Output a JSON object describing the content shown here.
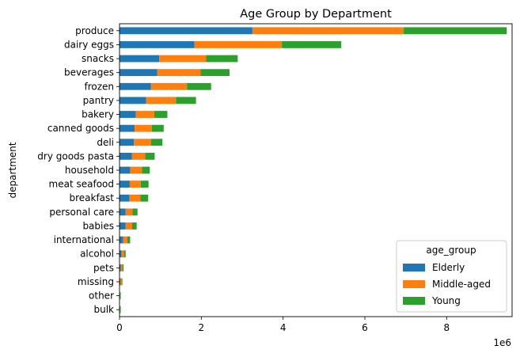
{
  "chart_data": {
    "type": "bar",
    "orientation": "horizontal",
    "stacked": true,
    "title": "Age Group by Department",
    "xlabel": "",
    "ylabel": "department",
    "x_scale_label": "1e6",
    "xlim": [
      0,
      9.6
    ],
    "x_ticks": [
      "0",
      "2",
      "4",
      "6",
      "8"
    ],
    "grid": false,
    "legend": {
      "title": "age_group",
      "placement": "bottom-right"
    },
    "categories": [
      "produce",
      "dairy eggs",
      "snacks",
      "beverages",
      "frozen",
      "pantry",
      "bakery",
      "canned goods",
      "deli",
      "dry goods pasta",
      "household",
      "meat seafood",
      "breakfast",
      "personal care",
      "babies",
      "international",
      "alcohol",
      "pets",
      "missing",
      "other",
      "bulk"
    ],
    "series": [
      {
        "name": "Elderly",
        "color": "#1f77b4",
        "values": [
          3.25,
          1.83,
          0.97,
          0.92,
          0.77,
          0.65,
          0.4,
          0.37,
          0.35,
          0.3,
          0.26,
          0.25,
          0.24,
          0.15,
          0.15,
          0.09,
          0.05,
          0.03,
          0.02,
          0.01,
          0.01
        ]
      },
      {
        "name": "Middle-aged",
        "color": "#ff7f0e",
        "values": [
          3.7,
          2.14,
          1.15,
          1.06,
          0.88,
          0.73,
          0.45,
          0.42,
          0.42,
          0.33,
          0.29,
          0.27,
          0.27,
          0.17,
          0.16,
          0.1,
          0.06,
          0.04,
          0.03,
          0.01,
          0.01
        ]
      },
      {
        "name": "Young",
        "color": "#2ca02c",
        "values": [
          2.52,
          1.45,
          0.77,
          0.71,
          0.59,
          0.49,
          0.32,
          0.29,
          0.28,
          0.23,
          0.19,
          0.19,
          0.19,
          0.12,
          0.11,
          0.07,
          0.04,
          0.03,
          0.02,
          0.01,
          0.01
        ]
      }
    ]
  }
}
